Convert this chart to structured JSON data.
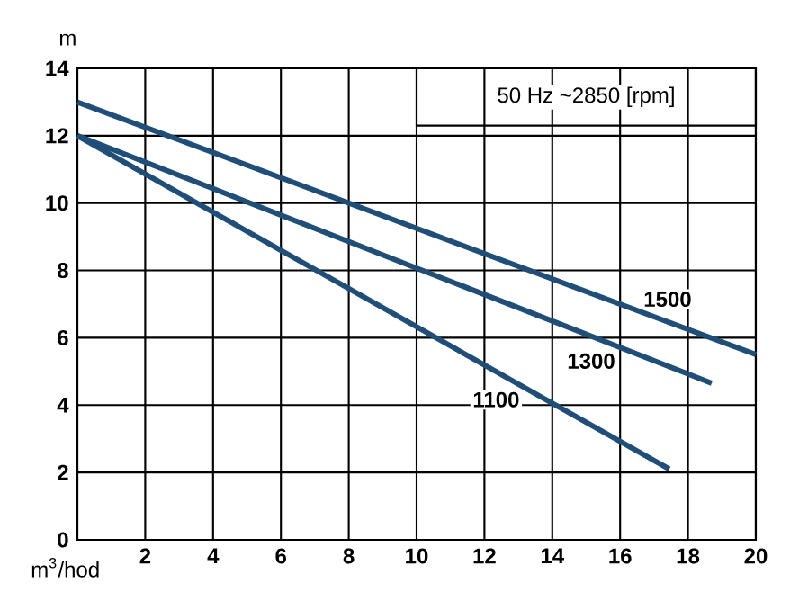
{
  "chart_data": {
    "type": "line",
    "subtitle": "50 Hz ~2850 [rpm]",
    "xlabel": "m$^{3}$/hod",
    "ylabel": "m",
    "series": [
      {
        "name": "1100",
        "color": "#1f4e79",
        "x": [
          0,
          17.45
        ],
        "values": [
          12,
          2.1
        ]
      },
      {
        "name": "1300",
        "color": "#1f4e79",
        "x": [
          0,
          18.7
        ],
        "values": [
          12,
          4.65
        ]
      },
      {
        "name": "1500",
        "color": "#1f4e79",
        "x": [
          0,
          20
        ],
        "values": [
          13,
          5.5
        ]
      }
    ],
    "xlim": [
      0,
      20
    ],
    "ylim": [
      0,
      14
    ],
    "xticks": [
      {
        "value": 0,
        "label": null
      },
      2,
      4,
      6,
      8,
      10,
      12,
      14,
      16,
      18,
      20
    ],
    "yticks": [
      0,
      2,
      4,
      6,
      8,
      10,
      12,
      14
    ],
    "grid": true,
    "legend": false,
    "marker": "none",
    "line_style": "solid"
  }
}
